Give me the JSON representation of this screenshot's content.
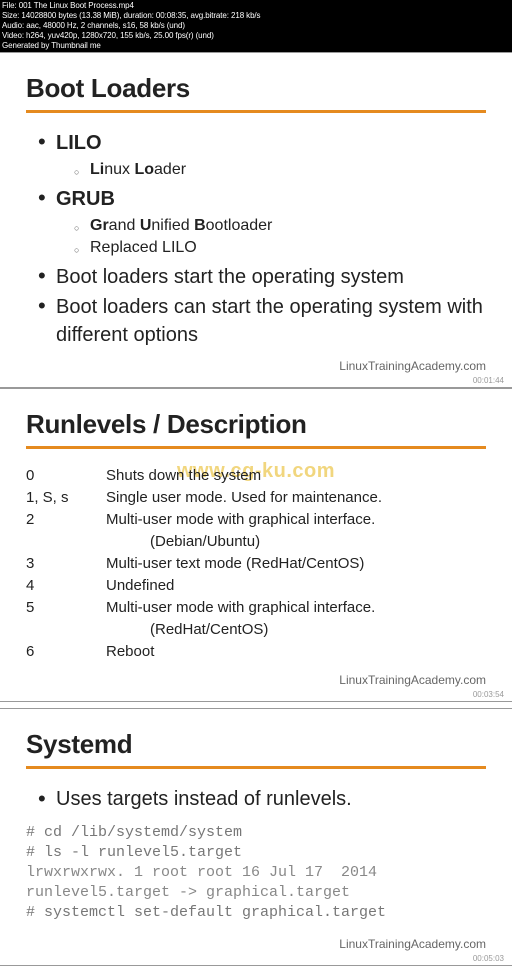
{
  "header_strip": {
    "lines": [
      "File: 001 The Linux Boot Process.mp4",
      "Size: 14028800 bytes (13.38 MiB), duration: 00:08:35, avg.bitrate: 218 kb/s",
      "Audio: aac, 48000 Hz, 2 channels, s16, 58 kb/s (und)",
      "Video: h264, yuv420p, 1280x720, 155 kb/s, 25.00 fps(r) (und)",
      "Generated by Thumbnail me"
    ],
    "bg_color": "#000000",
    "text_color": "#ffffff",
    "fontsize": 8
  },
  "accent_color": "#e58a1f",
  "text_color": "#222222",
  "footer_color": "#666666",
  "mono_color": "#777777",
  "footer_text": "LinuxTrainingAcademy.com",
  "watermark_text": "www.cg-ku.com",
  "slide1": {
    "title": "Boot Loaders",
    "items": [
      {
        "text": "LILO",
        "bold_all": true,
        "sub": [
          {
            "pre": "",
            "b1": "Li",
            "mid1": "nux ",
            "b2": "Lo",
            "mid2": "ader"
          }
        ]
      },
      {
        "text": "GRUB",
        "bold_all": true,
        "sub": [
          {
            "pre": "",
            "b1": "Gr",
            "mid1": "and ",
            "b2": "U",
            "mid2": "nified ",
            "b3": "B",
            "mid3": "ootloader"
          },
          {
            "plain": "Replaced LILO"
          }
        ]
      },
      {
        "text": "Boot loaders start the operating system"
      },
      {
        "text": "Boot loaders can start the operating system with different options"
      }
    ],
    "timestamp": "00:01:44"
  },
  "slide2": {
    "title": "Runlevels  / Description",
    "rows": [
      {
        "lvl": "0",
        "desc": "Shuts down the system"
      },
      {
        "lvl": "1, S, s",
        "desc": "Single user mode.  Used for maintenance."
      },
      {
        "lvl": "2",
        "desc": "Multi-user mode with graphical interface.",
        "cont": "(Debian/Ubuntu)"
      },
      {
        "lvl": "3",
        "desc": "Multi-user text mode (RedHat/CentOS)"
      },
      {
        "lvl": "4",
        "desc": "Undefined"
      },
      {
        "lvl": "5",
        "desc": "Multi-user mode with graphical interface.",
        "cont": "(RedHat/CentOS)"
      },
      {
        "lvl": "6",
        "desc": "Reboot"
      }
    ],
    "timestamp": "00:03:54"
  },
  "slide3": {
    "title": "Systemd",
    "bullet": "Uses targets instead of runlevels.",
    "term_lines": [
      "# cd /lib/systemd/system",
      "# ls -l runlevel5.target",
      "lrwxrwxrwx. 1 root root 16 Jul 17  2014 runlevel5.target -> graphical.target",
      "# systemctl set-default graphical.target"
    ],
    "timestamp": "00:05:03"
  }
}
